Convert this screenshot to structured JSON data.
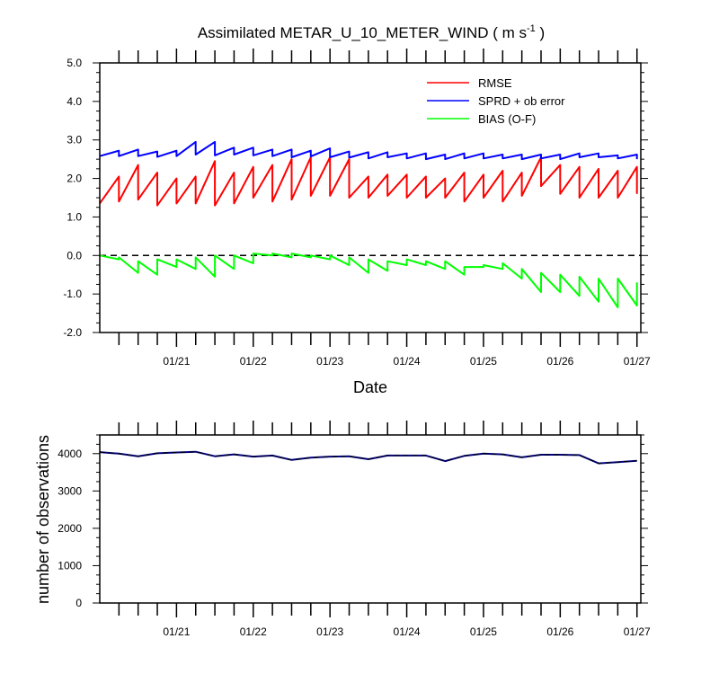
{
  "chart_data": [
    {
      "type": "line",
      "title": "Assimilated METAR_U_10_METER_WIND ( m s",
      "title_superscript": "-1",
      "title_end": " )",
      "xlabel": "Date",
      "ylabel": "",
      "ylim": [
        -2.0,
        5.0
      ],
      "yticks": [
        "5.0",
        "4.0",
        "3.0",
        "2.0",
        "1.0",
        "0.0",
        "-1.0",
        "-2.0"
      ],
      "ytick_values": [
        5,
        4,
        3,
        2,
        1,
        0,
        -1,
        -2
      ],
      "xlim": [
        20.0,
        27.05
      ],
      "xticks": [
        "01/21",
        "01/22",
        "01/23",
        "01/24",
        "01/25",
        "01/26",
        "01/27"
      ],
      "xtick_values": [
        21,
        22,
        23,
        24,
        25,
        26,
        27
      ],
      "zero_line": "dashed",
      "legend_position": "top-right",
      "series": [
        {
          "name": "RMSE",
          "color": "#ff0000",
          "x": [
            20.0,
            20.25,
            20.25,
            20.5,
            20.5,
            20.75,
            20.75,
            21.0,
            21.0,
            21.25,
            21.25,
            21.5,
            21.5,
            21.75,
            21.75,
            22.0,
            22.0,
            22.25,
            22.25,
            22.5,
            22.5,
            22.75,
            22.75,
            23.0,
            23.0,
            23.25,
            23.25,
            23.5,
            23.5,
            23.75,
            23.75,
            24.0,
            24.0,
            24.25,
            24.25,
            24.5,
            24.5,
            24.75,
            24.75,
            25.0,
            25.0,
            25.25,
            25.25,
            25.5,
            25.5,
            25.75,
            25.75,
            26.0,
            26.0,
            26.25,
            26.25,
            26.5,
            26.5,
            26.75,
            26.75,
            27.0,
            27.0
          ],
          "values": [
            1.35,
            2.05,
            1.4,
            2.35,
            1.45,
            2.15,
            1.3,
            2.0,
            1.35,
            2.05,
            1.35,
            2.45,
            1.3,
            2.15,
            1.35,
            2.3,
            1.5,
            2.35,
            1.4,
            2.5,
            1.45,
            2.55,
            1.55,
            2.55,
            1.55,
            2.5,
            1.5,
            2.05,
            1.5,
            2.1,
            1.55,
            2.1,
            1.5,
            2.05,
            1.5,
            2.0,
            1.5,
            2.15,
            1.4,
            2.1,
            1.5,
            2.2,
            1.4,
            2.15,
            1.55,
            2.55,
            1.8,
            2.35,
            1.6,
            2.3,
            1.5,
            2.25,
            1.5,
            2.2,
            1.5,
            2.3,
            1.6
          ]
        },
        {
          "name": "SPRD + ob error",
          "color": "#0000ff",
          "x": [
            20.0,
            20.25,
            20.25,
            20.5,
            20.5,
            20.75,
            20.75,
            21.0,
            21.0,
            21.25,
            21.25,
            21.5,
            21.5,
            21.75,
            21.75,
            22.0,
            22.0,
            22.25,
            22.25,
            22.5,
            22.5,
            22.75,
            22.75,
            23.0,
            23.0,
            23.25,
            23.25,
            23.5,
            23.5,
            23.75,
            23.75,
            24.0,
            24.0,
            24.25,
            24.25,
            24.5,
            24.5,
            24.75,
            24.75,
            25.0,
            25.0,
            25.25,
            25.25,
            25.5,
            25.5,
            25.75,
            25.75,
            26.0,
            26.0,
            26.25,
            26.25,
            26.5,
            26.5,
            26.75,
            26.75,
            27.0,
            27.0
          ],
          "values": [
            2.58,
            2.72,
            2.58,
            2.75,
            2.58,
            2.7,
            2.56,
            2.72,
            2.58,
            2.95,
            2.62,
            2.95,
            2.6,
            2.8,
            2.62,
            2.8,
            2.6,
            2.75,
            2.58,
            2.75,
            2.55,
            2.72,
            2.57,
            2.78,
            2.55,
            2.7,
            2.54,
            2.68,
            2.52,
            2.68,
            2.55,
            2.65,
            2.52,
            2.65,
            2.5,
            2.62,
            2.5,
            2.65,
            2.52,
            2.65,
            2.52,
            2.62,
            2.52,
            2.62,
            2.5,
            2.62,
            2.52,
            2.62,
            2.5,
            2.65,
            2.55,
            2.65,
            2.55,
            2.6,
            2.52,
            2.62,
            2.5
          ]
        },
        {
          "name": "BIAS (O-F)",
          "color": "#00ff00",
          "x": [
            20.0,
            20.25,
            20.25,
            20.5,
            20.5,
            20.75,
            20.75,
            21.0,
            21.0,
            21.25,
            21.25,
            21.5,
            21.5,
            21.75,
            21.75,
            22.0,
            22.0,
            22.25,
            22.25,
            22.5,
            22.5,
            22.75,
            22.75,
            23.0,
            23.0,
            23.25,
            23.25,
            23.5,
            23.5,
            23.75,
            23.75,
            24.0,
            24.0,
            24.25,
            24.25,
            24.5,
            24.5,
            24.75,
            24.75,
            25.0,
            25.0,
            25.25,
            25.25,
            25.5,
            25.5,
            25.75,
            25.75,
            26.0,
            26.0,
            26.25,
            26.25,
            26.5,
            26.5,
            26.75,
            26.75,
            27.0,
            27.0
          ],
          "values": [
            0.0,
            -0.1,
            -0.05,
            -0.45,
            -0.15,
            -0.5,
            -0.1,
            -0.3,
            -0.1,
            -0.35,
            -0.05,
            -0.55,
            0.0,
            -0.35,
            0.0,
            -0.2,
            0.05,
            0.0,
            0.05,
            -0.05,
            0.05,
            -0.05,
            0.0,
            -0.1,
            0.0,
            -0.25,
            -0.05,
            -0.45,
            -0.1,
            -0.4,
            -0.15,
            -0.25,
            -0.1,
            -0.25,
            -0.15,
            -0.35,
            -0.15,
            -0.5,
            -0.3,
            -0.3,
            -0.25,
            -0.35,
            -0.2,
            -0.6,
            -0.35,
            -0.95,
            -0.45,
            -0.95,
            -0.5,
            -1.05,
            -0.55,
            -1.2,
            -0.6,
            -1.35,
            -0.6,
            -1.3,
            -0.7
          ]
        }
      ]
    },
    {
      "type": "line",
      "title": "",
      "xlabel": "",
      "ylabel": "number of observations",
      "ylim": [
        0,
        4500
      ],
      "yticks": [
        "4000",
        "3000",
        "2000",
        "1000",
        "0"
      ],
      "ytick_values": [
        4000,
        3000,
        2000,
        1000,
        0
      ],
      "xlim": [
        20.0,
        27.05
      ],
      "xticks": [
        "01/21",
        "01/22",
        "01/23",
        "01/24",
        "01/25",
        "01/26",
        "01/27"
      ],
      "xtick_values": [
        21,
        22,
        23,
        24,
        25,
        26,
        27
      ],
      "series": [
        {
          "color": "#000080",
          "x": [
            20.0,
            20.25,
            20.5,
            20.75,
            21.0,
            21.25,
            21.5,
            21.75,
            22.0,
            22.25,
            22.5,
            22.75,
            23.0,
            23.25,
            23.5,
            23.75,
            24.0,
            24.25,
            24.5,
            24.75,
            25.0,
            25.25,
            25.5,
            25.75,
            26.0,
            26.25,
            26.5,
            26.75,
            27.0
          ],
          "values": [
            4040,
            4000,
            3930,
            4010,
            4030,
            4050,
            3930,
            3980,
            3920,
            3950,
            3830,
            3890,
            3920,
            3930,
            3850,
            3950,
            3950,
            3950,
            3800,
            3940,
            4000,
            3980,
            3900,
            3970,
            3970,
            3960,
            3740,
            3770,
            3810
          ]
        }
      ]
    }
  ]
}
